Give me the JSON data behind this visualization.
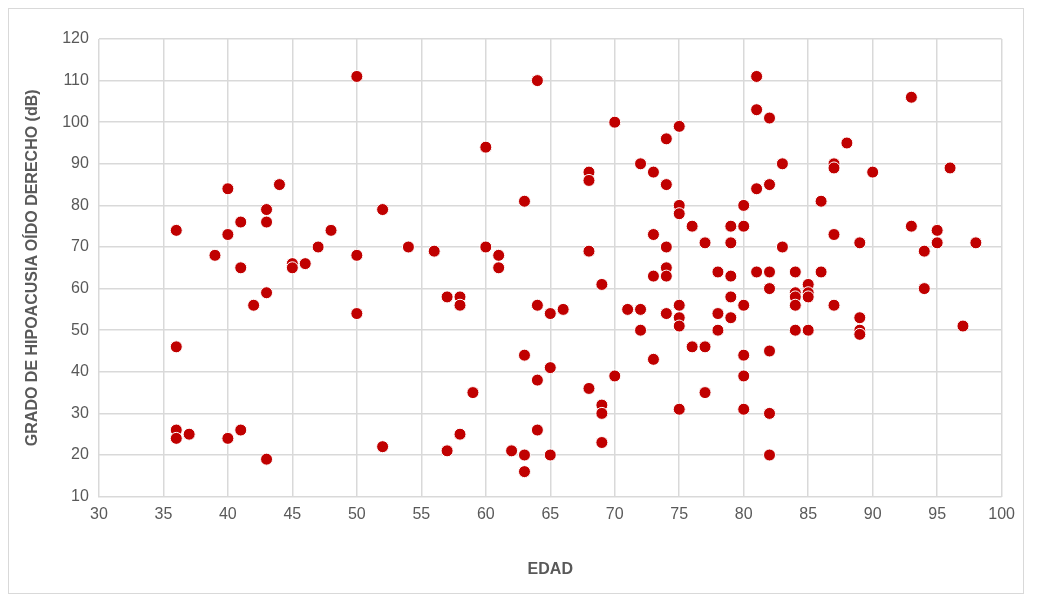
{
  "chart_data": {
    "type": "scatter",
    "xlabel": "EDAD",
    "ylabel": "GRADO DE HIPOACUSIA OÍDO DERECHO (dB)",
    "x": [
      36,
      36,
      36,
      36,
      37,
      39,
      40,
      40,
      40,
      41,
      41,
      41,
      42,
      43,
      43,
      43,
      43,
      44,
      45,
      45,
      46,
      47,
      48,
      50,
      50,
      50,
      52,
      52,
      54,
      56,
      57,
      57,
      58,
      58,
      58,
      59,
      60,
      60,
      61,
      61,
      62,
      63,
      63,
      63,
      63,
      64,
      64,
      64,
      64,
      65,
      65,
      65,
      66,
      68,
      68,
      68,
      68,
      69,
      69,
      69,
      69,
      70,
      70,
      71,
      72,
      72,
      72,
      73,
      73,
      73,
      73,
      74,
      74,
      74,
      74,
      74,
      74,
      75,
      75,
      75,
      75,
      75,
      75,
      75,
      76,
      76,
      77,
      77,
      77,
      78,
      78,
      78,
      79,
      79,
      79,
      79,
      79,
      80,
      80,
      80,
      80,
      80,
      80,
      81,
      81,
      81,
      81,
      82,
      82,
      82,
      82,
      82,
      82,
      82,
      83,
      83,
      84,
      84,
      84,
      84,
      84,
      85,
      85,
      85,
      85,
      86,
      86,
      87,
      87,
      87,
      87,
      88,
      89,
      89,
      89,
      89,
      90,
      93,
      93,
      94,
      94,
      95,
      95,
      96,
      97,
      98
    ],
    "series": [
      {
        "color": "#c00000",
        "values": [
          74,
          46,
          26,
          24,
          25,
          68,
          84,
          73,
          24,
          76,
          65,
          26,
          56,
          79,
          76,
          59,
          19,
          85,
          66,
          65,
          66,
          70,
          74,
          111,
          68,
          54,
          79,
          22,
          70,
          69,
          58,
          21,
          58,
          56,
          25,
          35,
          94,
          70,
          68,
          65,
          21,
          81,
          44,
          20,
          16,
          110,
          56,
          38,
          26,
          54,
          41,
          20,
          55,
          88,
          86,
          69,
          36,
          61,
          32,
          30,
          23,
          100,
          39,
          55,
          90,
          55,
          50,
          88,
          73,
          63,
          43,
          96,
          85,
          70,
          65,
          63,
          54,
          99,
          80,
          78,
          56,
          53,
          51,
          31,
          75,
          46,
          71,
          46,
          35,
          64,
          54,
          50,
          75,
          71,
          63,
          58,
          53,
          80,
          75,
          56,
          44,
          39,
          31,
          111,
          103,
          84,
          64,
          101,
          85,
          64,
          60,
          45,
          30,
          20,
          90,
          70,
          64,
          59,
          58,
          56,
          50,
          61,
          59,
          58,
          50,
          81,
          64,
          90,
          89,
          73,
          56,
          95,
          71,
          53,
          50,
          49,
          88,
          106,
          75,
          69,
          60,
          74,
          71,
          89,
          51,
          71
        ]
      }
    ],
    "xlim": [
      30,
      100
    ],
    "xticks": [
      30,
      35,
      40,
      45,
      50,
      55,
      60,
      65,
      70,
      75,
      80,
      85,
      90,
      95,
      100
    ],
    "ylim": [
      10,
      120
    ],
    "yticks": [
      10,
      20,
      30,
      40,
      50,
      60,
      70,
      80,
      90,
      100,
      110,
      120
    ],
    "grid": true,
    "legend": false,
    "marker": "circle"
  }
}
